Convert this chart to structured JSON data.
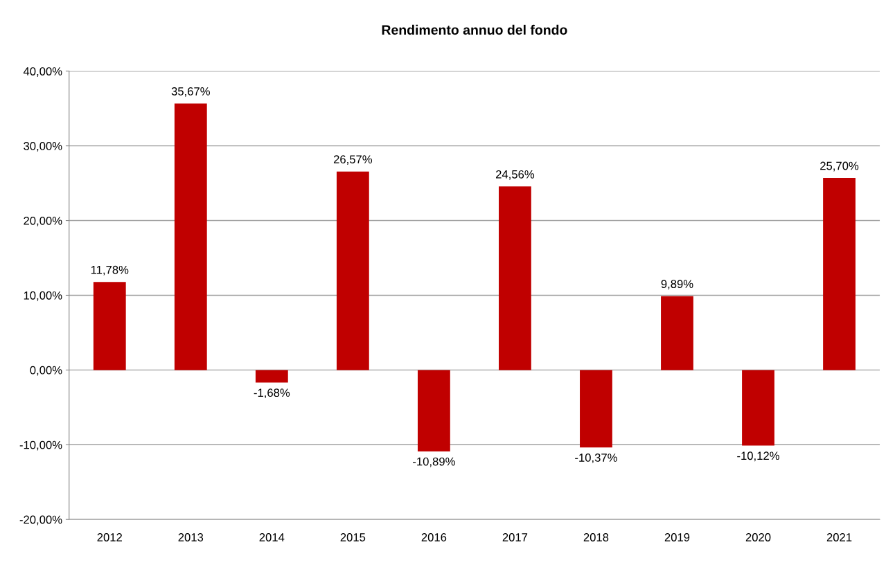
{
  "chart_data": {
    "type": "bar",
    "title": "Rendimento annuo del fondo",
    "categories": [
      "2012",
      "2013",
      "2014",
      "2015",
      "2016",
      "2017",
      "2018",
      "2019",
      "2020",
      "2021"
    ],
    "values": [
      11.78,
      35.67,
      -1.68,
      26.57,
      -10.89,
      24.56,
      -10.37,
      9.89,
      -10.12,
      25.7
    ],
    "value_labels": [
      "11,78%",
      "35,67%",
      "-1,68%",
      "26,57%",
      "-10,89%",
      "24,56%",
      "-10,37%",
      "9,89%",
      "-10,12%",
      "25,70%"
    ],
    "color": "#c00000",
    "ylim": [
      -20,
      40
    ],
    "yticks": [
      {
        "value": -20,
        "label": "-20,00%"
      },
      {
        "value": -10,
        "label": "-10,00%"
      },
      {
        "value": 0,
        "label": "0,00%"
      },
      {
        "value": 10,
        "label": "10,00%"
      },
      {
        "value": 20,
        "label": "20,00%"
      },
      {
        "value": 30,
        "label": "30,00%"
      },
      {
        "value": 40,
        "label": "40,00%"
      }
    ],
    "grid": "y",
    "legend": false
  }
}
